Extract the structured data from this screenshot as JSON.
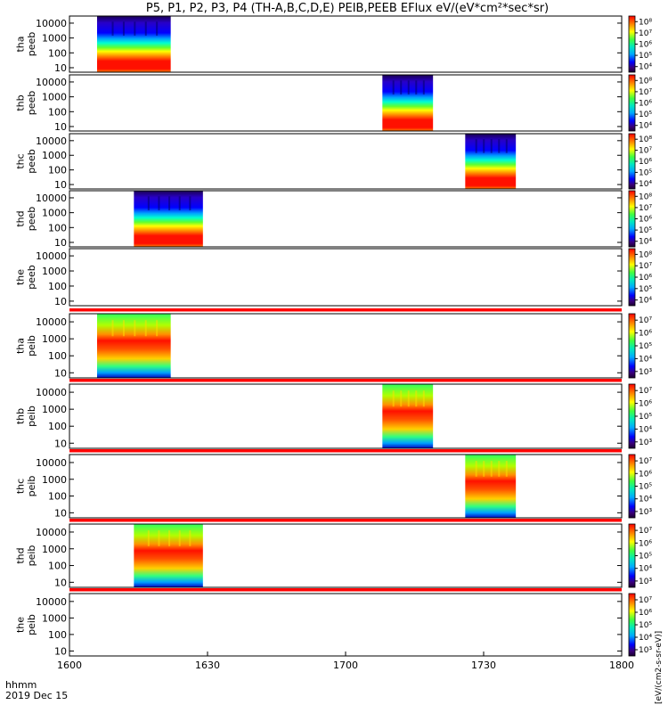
{
  "title": "P5, P1, P2, P3, P4 (TH-A,B,C,D,E) PEIB,PEEB EFlux eV/(eV*cm²*sec*sr)",
  "colorbar_label": "[eV/(cm2-s-sr-eV)]",
  "chart_data": {
    "type": "heatmap",
    "title": "P5, P1, P2, P3, P4 (TH-A,B,C,D,E) PEIB,PEEB EFlux eV/(eV*cm²*sec*sr)",
    "x_ticks": [
      "1600",
      "1630",
      "1700",
      "1730",
      "1800"
    ],
    "x_tick_minutes": [
      0,
      30,
      60,
      90,
      120
    ],
    "x_range_minutes": [
      0,
      120
    ],
    "x_label_line1": "hhmm",
    "x_label_line2": "2019 Dec 15",
    "y_ticks": [
      "10",
      "100",
      "1000",
      "10000"
    ],
    "y_scale": "log",
    "y_range": [
      5,
      30000
    ],
    "colorbar_scale": "log",
    "panels": [
      {
        "probe": "tha",
        "inst": "peeb",
        "interval_min": [
          6,
          22
        ],
        "spectrum": "electron",
        "peak_log": 7.6,
        "colorbar_ticks": [
          "10⁴",
          "10⁵",
          "10⁶",
          "10⁷",
          "10⁸"
        ],
        "cbar_range_log": [
          3.5,
          8.5
        ]
      },
      {
        "probe": "thb",
        "inst": "peeb",
        "interval_min": [
          68,
          79
        ],
        "spectrum": "electron",
        "peak_log": 7.6,
        "colorbar_ticks": [
          "10⁴",
          "10⁵",
          "10⁶",
          "10⁷",
          "10⁸"
        ],
        "cbar_range_log": [
          3.5,
          8.5
        ]
      },
      {
        "probe": "thc",
        "inst": "peeb",
        "interval_min": [
          86,
          97
        ],
        "spectrum": "electron",
        "peak_log": 7.6,
        "colorbar_ticks": [
          "10⁴",
          "10⁵",
          "10⁶",
          "10⁷",
          "10⁸"
        ],
        "cbar_range_log": [
          3.5,
          8.5
        ]
      },
      {
        "probe": "thd",
        "inst": "peeb",
        "interval_min": [
          14,
          29
        ],
        "spectrum": "electron",
        "peak_log": 7.6,
        "colorbar_ticks": [
          "10⁴",
          "10⁵",
          "10⁶",
          "10⁷",
          "10⁸"
        ],
        "cbar_range_log": [
          3.5,
          8.5
        ]
      },
      {
        "probe": "the",
        "inst": "peeb",
        "interval_min": null,
        "spectrum": "electron",
        "peak_log": 7.6,
        "colorbar_ticks": [
          "10⁴",
          "10⁵",
          "10⁶",
          "10⁷",
          "10⁸"
        ],
        "cbar_range_log": [
          3.5,
          8.5
        ]
      },
      {
        "probe": "tha",
        "inst": "peib",
        "interval_min": [
          6,
          22
        ],
        "spectrum": "ion",
        "peak_log": 7.0,
        "colorbar_ticks": [
          "10³",
          "10⁴",
          "10⁵",
          "10⁶",
          "10⁷"
        ],
        "cbar_range_log": [
          2.5,
          7.5
        ]
      },
      {
        "probe": "thb",
        "inst": "peib",
        "interval_min": [
          68,
          79
        ],
        "spectrum": "ion",
        "peak_log": 7.0,
        "colorbar_ticks": [
          "10³",
          "10⁴",
          "10⁵",
          "10⁶",
          "10⁷"
        ],
        "cbar_range_log": [
          2.5,
          7.5
        ]
      },
      {
        "probe": "thc",
        "inst": "peib",
        "interval_min": [
          86,
          97
        ],
        "spectrum": "ion",
        "peak_log": 7.0,
        "colorbar_ticks": [
          "10³",
          "10⁴",
          "10⁵",
          "10⁶",
          "10⁷"
        ],
        "cbar_range_log": [
          2.5,
          7.5
        ]
      },
      {
        "probe": "thd",
        "inst": "peib",
        "interval_min": [
          14,
          29
        ],
        "spectrum": "ion",
        "peak_log": 7.0,
        "colorbar_ticks": [
          "10³",
          "10⁴",
          "10⁵",
          "10⁶",
          "10⁷"
        ],
        "cbar_range_log": [
          2.5,
          7.5
        ]
      },
      {
        "probe": "the",
        "inst": "peib",
        "interval_min": null,
        "spectrum": "ion",
        "peak_log": 7.0,
        "colorbar_ticks": [
          "10³",
          "10⁴",
          "10⁵",
          "10⁶",
          "10⁷"
        ],
        "cbar_range_log": [
          2.5,
          7.5
        ]
      }
    ]
  }
}
